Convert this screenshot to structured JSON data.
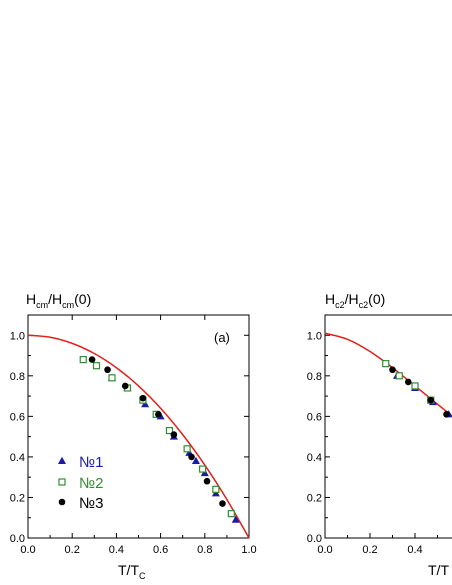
{
  "chart_data": [
    {
      "type": "scatter",
      "panel_label": "(a)",
      "ylabel_main": "H",
      "ylabel_sub1": "cm",
      "ylabel_mid": "/H",
      "ylabel_sub2": "cm",
      "ylabel_tail": "(0)",
      "xlabel_main": "T/T",
      "xlabel_sub": "C",
      "xlim": [
        0.0,
        1.0
      ],
      "ylim": [
        0.0,
        1.1
      ],
      "x_ticks": [
        "0.0",
        "0.2",
        "0.4",
        "0.6",
        "0.8",
        "1.0"
      ],
      "y_ticks": [
        "0.0",
        "0.2",
        "0.4",
        "0.6",
        "0.8",
        "1.0"
      ],
      "legend_position": "lower-left",
      "fit_curve": {
        "color": "#e0201c",
        "x": [
          0.0,
          0.1,
          0.2,
          0.3,
          0.4,
          0.5,
          0.6,
          0.7,
          0.8,
          0.9,
          1.0
        ],
        "y": [
          1.0,
          0.99,
          0.96,
          0.91,
          0.84,
          0.75,
          0.64,
          0.51,
          0.36,
          0.19,
          0.0
        ]
      },
      "series": [
        {
          "name": "№1",
          "marker": "triangle",
          "color": "#1b1ba8",
          "x": [
            0.38,
            0.45,
            0.53,
            0.6,
            0.66,
            0.73,
            0.76,
            0.8,
            0.85,
            0.94
          ],
          "y": [
            0.79,
            0.74,
            0.66,
            0.6,
            0.5,
            0.42,
            0.38,
            0.32,
            0.22,
            0.09
          ]
        },
        {
          "name": "№2",
          "marker": "square-open",
          "color": "#2f8f2f",
          "x": [
            0.25,
            0.31,
            0.38,
            0.45,
            0.52,
            0.58,
            0.64,
            0.72,
            0.79,
            0.85,
            0.92
          ],
          "y": [
            0.88,
            0.85,
            0.79,
            0.74,
            0.68,
            0.61,
            0.53,
            0.44,
            0.34,
            0.24,
            0.12
          ]
        },
        {
          "name": "№3",
          "marker": "circle",
          "color": "#000000",
          "x": [
            0.29,
            0.36,
            0.44,
            0.52,
            0.59,
            0.66,
            0.74,
            0.81,
            0.88
          ],
          "y": [
            0.88,
            0.83,
            0.75,
            0.69,
            0.61,
            0.51,
            0.4,
            0.28,
            0.17
          ]
        }
      ]
    },
    {
      "type": "scatter",
      "ylabel_main": "H",
      "ylabel_sub1": "c2",
      "ylabel_mid": "/H",
      "ylabel_sub2": "c2",
      "ylabel_tail": "(0)",
      "xlabel_main": "T/T",
      "xlim": [
        0.0,
        0.6
      ],
      "ylim": [
        0.0,
        1.1
      ],
      "x_ticks": [
        "0.0",
        "0.2",
        "0.4"
      ],
      "y_ticks": [
        "0.0",
        "0.2",
        "0.4",
        "0.6",
        "0.8",
        "1.0"
      ],
      "fit_curve": {
        "color": "#e0201c",
        "x": [
          0.0,
          0.1,
          0.2,
          0.3,
          0.4,
          0.5,
          0.6
        ],
        "y": [
          1.01,
          0.98,
          0.92,
          0.84,
          0.75,
          0.66,
          0.57
        ]
      },
      "series": [
        {
          "name": "№1",
          "marker": "triangle",
          "color": "#1b1ba8",
          "x": [
            0.32,
            0.4,
            0.48,
            0.55
          ],
          "y": [
            0.8,
            0.74,
            0.67,
            0.61
          ]
        },
        {
          "name": "№2",
          "marker": "square-open",
          "color": "#2f8f2f",
          "x": [
            0.27,
            0.33,
            0.4,
            0.47
          ],
          "y": [
            0.86,
            0.8,
            0.75,
            0.68
          ]
        },
        {
          "name": "№3",
          "marker": "circle",
          "color": "#000000",
          "x": [
            0.3,
            0.37,
            0.47,
            0.54
          ],
          "y": [
            0.83,
            0.77,
            0.68,
            0.61
          ]
        }
      ]
    }
  ]
}
